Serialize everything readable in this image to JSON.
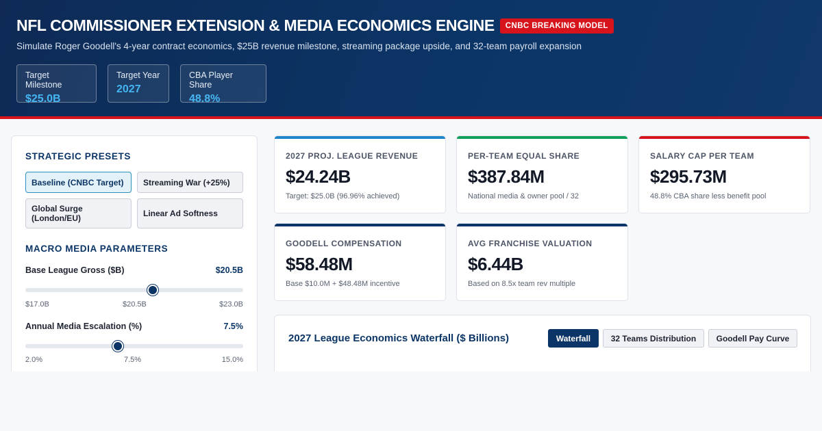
{
  "header": {
    "title": "NFL COMMISSIONER EXTENSION & MEDIA ECONOMICS ENGINE",
    "badge": "CNBC BREAKING MODEL",
    "subtitle": "Simulate Roger Goodell's 4-year contract economics, $25B revenue milestone, streaming package upside, and 32-team payroll expansion",
    "pills": [
      {
        "label": "Target Milestone",
        "value": "$25.0B"
      },
      {
        "label": "Target Year",
        "value": "2027"
      },
      {
        "label": "CBA Player Share",
        "value": "48.8%"
      }
    ]
  },
  "sidebar": {
    "presets_title": "STRATEGIC PRESETS",
    "presets": [
      {
        "label": "Baseline (CNBC Target)",
        "active": true
      },
      {
        "label": "Streaming War (+25%)",
        "active": false
      },
      {
        "label": "Global Surge (London/EU)",
        "active": false
      },
      {
        "label": "Linear Ad Softness",
        "active": false
      }
    ],
    "params_title": "MACRO MEDIA PARAMETERS",
    "params": [
      {
        "label": "Base League Gross ($B)",
        "value": "$20.5B",
        "min_label": "$17.0B",
        "mid_label": "$20.5B",
        "max_label": "$23.0B",
        "min": 17.0,
        "max": 23.0,
        "current": 20.5
      },
      {
        "label": "Annual Media Escalation (%)",
        "value": "7.5%",
        "min_label": "2.0%",
        "mid_label": "7.5%",
        "max_label": "15.0%",
        "min": 2.0,
        "max": 15.0,
        "current": 7.5
      }
    ]
  },
  "metrics": [
    {
      "label": "2027 PROJ. LEAGUE REVENUE",
      "value": "$24.24B",
      "note": "Target: $25.0B (96.96% achieved)",
      "color": "#1e86c8"
    },
    {
      "label": "PER-TEAM EQUAL SHARE",
      "value": "$387.84M",
      "note": "National media & owner pool / 32",
      "color": "#11a05a"
    },
    {
      "label": "SALARY CAP PER TEAM",
      "value": "$295.73M",
      "note": "48.8% CBA share less benefit pool",
      "color": "#d7141b"
    },
    {
      "label": "GOODELL COMPENSATION",
      "value": "$58.48M",
      "note": "Base $10.0M + $48.48M incentive",
      "color": "#0b3566"
    },
    {
      "label": "AVG FRANCHISE VALUATION",
      "value": "$6.44B",
      "note": "Based on 8.5x team rev multiple",
      "color": "#0b3566"
    }
  ],
  "chart_panel": {
    "title": "2027 League Economics Waterfall ($ Billions)",
    "tabs": [
      {
        "label": "Waterfall",
        "active": true
      },
      {
        "label": "32 Teams Distribution",
        "active": false
      },
      {
        "label": "Goodell Pay Curve",
        "active": false
      }
    ]
  }
}
